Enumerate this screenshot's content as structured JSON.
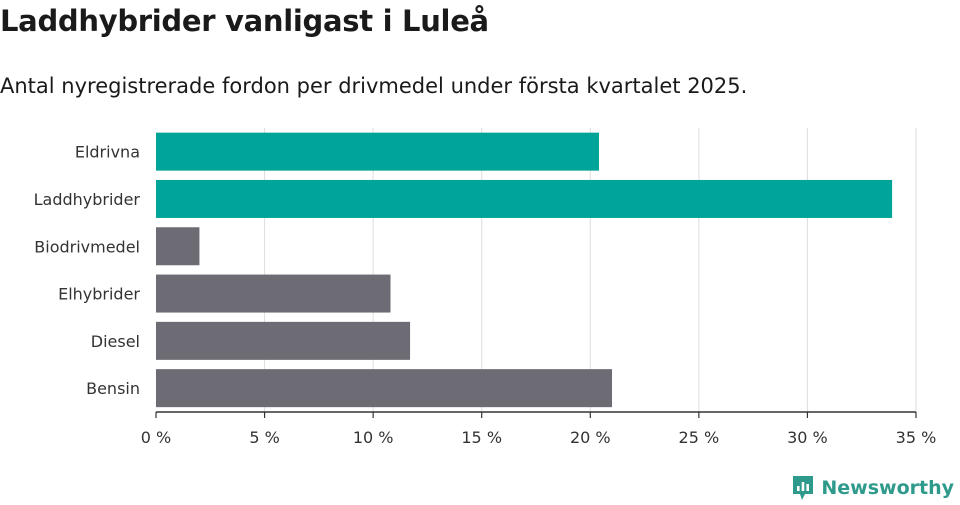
{
  "header": {
    "title": "Laddhybrider vanligast i Luleå",
    "subtitle": "Antal nyregistrerade fordon per drivmedel under första kvartalet 2025."
  },
  "brand": {
    "name": "Newsworthy",
    "color": "#2e9a8b"
  },
  "chart_data": {
    "type": "bar",
    "orientation": "horizontal",
    "categories": [
      "Eldrivna",
      "Laddhybrider",
      "Biodrivmedel",
      "Elhybrider",
      "Diesel",
      "Bensin"
    ],
    "values": [
      20.4,
      33.9,
      2.0,
      10.8,
      11.7,
      21.0
    ],
    "highlighted": [
      true,
      true,
      false,
      false,
      false,
      false
    ],
    "colors": {
      "highlight": "#00a498",
      "default": "#6d6b73"
    },
    "x_ticks": [
      0,
      5,
      10,
      15,
      20,
      25,
      30,
      35
    ],
    "x_tick_labels": [
      "0 %",
      "5 %",
      "10 %",
      "15 %",
      "20 %",
      "25 %",
      "30 %",
      "35 %"
    ],
    "xlim": [
      0,
      35
    ],
    "grid": true
  }
}
